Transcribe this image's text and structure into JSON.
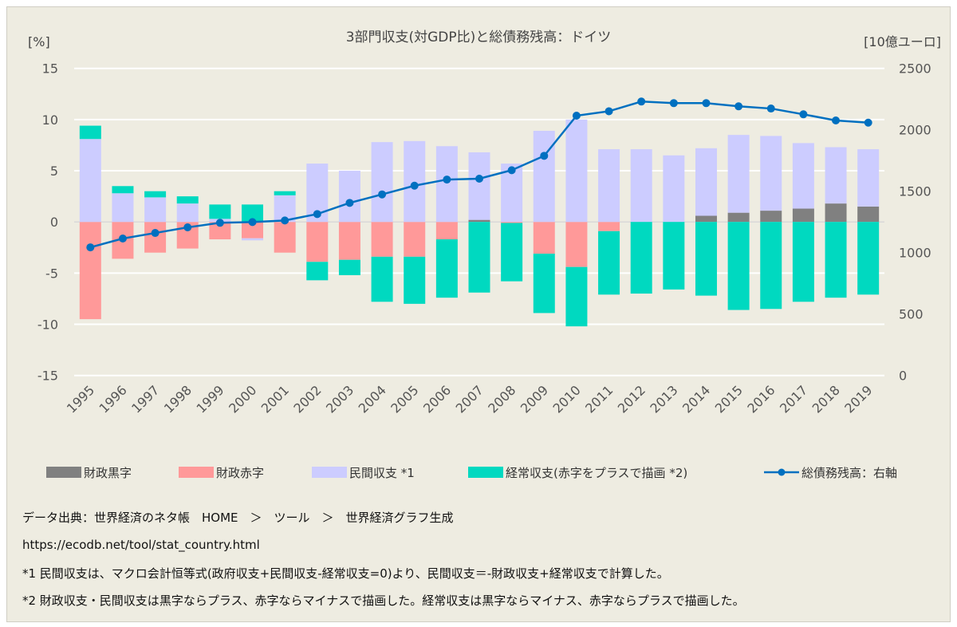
{
  "chart_data": {
    "type": "bar",
    "title": "3部門収支(対GDP比)と総債務残高：ドイツ",
    "ylabel_left": "[%]",
    "ylabel_right": "[10億ユーロ]",
    "ylim_left": [
      -15,
      15
    ],
    "yticks_left": [
      15,
      10,
      5,
      0,
      -5,
      -10,
      -15
    ],
    "ylim_right": [
      0,
      2500
    ],
    "yticks_right": [
      2500,
      2000,
      1500,
      1000,
      500,
      0
    ],
    "grid": true,
    "legend_position": "bottom",
    "categories": [
      "1995",
      "1996",
      "1997",
      "1998",
      "1999",
      "2000",
      "2001",
      "2002",
      "2003",
      "2004",
      "2005",
      "2006",
      "2007",
      "2008",
      "2009",
      "2010",
      "2011",
      "2012",
      "2013",
      "2014",
      "2015",
      "2016",
      "2017",
      "2018",
      "2019"
    ],
    "series": [
      {
        "name": "財政黒字 / 財政赤字",
        "key": "fiscal",
        "values": [
          -9.5,
          -3.6,
          -3.0,
          -2.6,
          -1.7,
          -1.6,
          -3.0,
          -3.9,
          -3.7,
          -3.4,
          -3.4,
          -1.7,
          0.2,
          -0.1,
          -3.1,
          -4.4,
          -0.9,
          0.0,
          0.0,
          0.6,
          0.9,
          1.1,
          1.3,
          1.8,
          1.5
        ]
      },
      {
        "name": "民間収支 *1",
        "key": "private",
        "values": [
          8.1,
          2.8,
          2.4,
          1.8,
          0.3,
          -0.2,
          2.6,
          5.7,
          5.0,
          7.8,
          7.9,
          7.4,
          6.6,
          5.7,
          8.9,
          10.0,
          7.1,
          7.1,
          6.5,
          6.6,
          7.6,
          7.3,
          6.4,
          5.5,
          5.6
        ]
      },
      {
        "name": "経常収支(赤字をプラスで描画 *2)",
        "key": "current_account",
        "values": [
          1.3,
          0.7,
          0.6,
          0.7,
          1.4,
          1.7,
          0.4,
          -1.8,
          -1.5,
          -4.4,
          -4.6,
          -5.7,
          -6.9,
          -5.7,
          -5.8,
          -5.8,
          -6.2,
          -7.0,
          -6.6,
          -7.2,
          -8.6,
          -8.5,
          -7.8,
          -7.4,
          -7.1
        ]
      },
      {
        "name": "総債務残高：右軸",
        "key": "debt",
        "type": "line",
        "axis": "right",
        "values": [
          1043,
          1115,
          1160,
          1206,
          1243,
          1249,
          1262,
          1314,
          1405,
          1474,
          1545,
          1595,
          1602,
          1671,
          1788,
          2115,
          2151,
          2230,
          2217,
          2217,
          2191,
          2173,
          2126,
          2076,
          2058
        ]
      }
    ],
    "legend": [
      "財政黒字",
      "財政赤字",
      "民間収支 *1",
      "経常収支(赤字をプラスで描画 *2)",
      "総債務残高：右軸"
    ],
    "colors": {
      "fiscal_surplus": "#808080",
      "fiscal_deficit": "#ff9999",
      "private": "#ccccff",
      "current_account": "#00d9c0",
      "debt": "#0070c0",
      "background": "#eeece1",
      "grid": "#ffffff"
    }
  },
  "footer": {
    "source": "データ出典：世界経済のネタ帳　HOME　＞　ツール　＞　世界経済グラフ生成",
    "url": "https://ecodb.net/tool/stat_country.html",
    "note1": "*1 民間収支は、マクロ会計恒等式(政府収支+民間収支-経常収支=0)より、民間収支＝-財政収支+経常収支で計算した。",
    "note2": "*2 財政収支・民間収支は黒字ならプラス、赤字ならマイナスで描画した。経常収支は黒字ならマイナス、赤字ならプラスで描画した。"
  }
}
